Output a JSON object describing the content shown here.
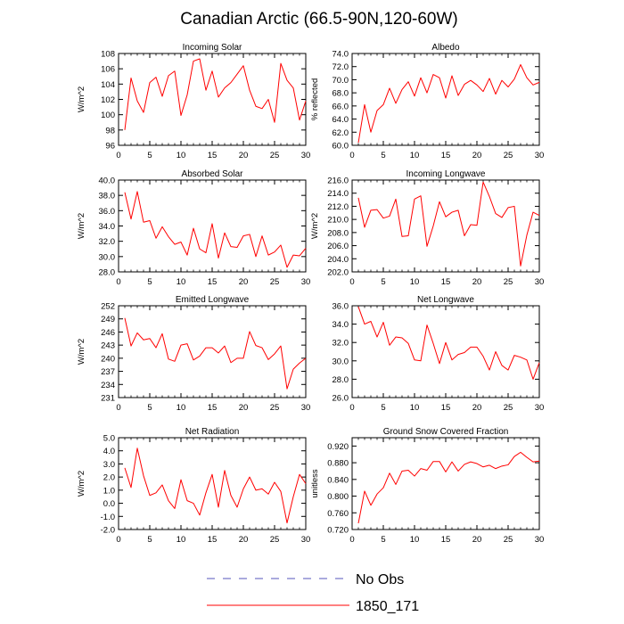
{
  "figure": {
    "title": "Canadian Arctic (66.5-90N,120-60W)"
  },
  "legend": {
    "entries": [
      {
        "label": "No Obs",
        "color": "#5555bb",
        "style": "dashed"
      },
      {
        "label": "1850_171",
        "color": "#ff0000",
        "style": "solid"
      }
    ]
  },
  "chart_data": [
    {
      "type": "line",
      "title": "Incoming Solar",
      "xlabel": "",
      "ylabel": "W/m^2",
      "xlim": [
        0,
        30
      ],
      "ylim": [
        96,
        108
      ],
      "xticks": [
        0,
        5,
        10,
        15,
        20,
        25,
        30
      ],
      "yticks": [
        96,
        98,
        100,
        102,
        104,
        106,
        108
      ],
      "ytick_labels": [
        "96",
        "98",
        "100",
        "102",
        "104",
        "106",
        "108"
      ],
      "series": [
        {
          "name": "1850_171",
          "color": "#ff0000",
          "x": [
            1,
            2,
            3,
            4,
            5,
            6,
            7,
            8,
            9,
            10,
            11,
            12,
            13,
            14,
            15,
            16,
            17,
            18,
            19,
            20,
            21,
            22,
            23,
            24,
            25,
            26,
            27,
            28,
            29,
            30
          ],
          "values": [
            98.0,
            104.8,
            101.8,
            100.3,
            104.2,
            104.9,
            102.4,
            105.1,
            105.7,
            99.9,
            102.6,
            107.0,
            107.3,
            103.2,
            105.7,
            102.3,
            103.5,
            104.2,
            105.3,
            106.4,
            103.2,
            101.1,
            100.8,
            102.0,
            99.0,
            106.7,
            104.5,
            103.5,
            99.3,
            101.8
          ]
        }
      ]
    },
    {
      "type": "line",
      "title": "Albedo",
      "xlabel": "",
      "ylabel": "% reflected",
      "xlim": [
        0,
        30
      ],
      "ylim": [
        60,
        74
      ],
      "xticks": [
        0,
        5,
        10,
        15,
        20,
        25,
        30
      ],
      "yticks": [
        60,
        62,
        64,
        66,
        68,
        70,
        72,
        74
      ],
      "ytick_labels": [
        "60.0",
        "62.0",
        "64.0",
        "66.0",
        "68.0",
        "70.0",
        "72.0",
        "74.0"
      ],
      "series": [
        {
          "name": "1850_171",
          "color": "#ff0000",
          "x": [
            1,
            2,
            3,
            4,
            5,
            6,
            7,
            8,
            9,
            10,
            11,
            12,
            13,
            14,
            15,
            16,
            17,
            18,
            19,
            20,
            21,
            22,
            23,
            24,
            25,
            26,
            27,
            28,
            29,
            30
          ],
          "values": [
            60.4,
            66.2,
            62.0,
            65.3,
            66.2,
            68.7,
            66.4,
            68.5,
            69.7,
            67.5,
            70.3,
            68.0,
            70.8,
            70.3,
            67.2,
            70.6,
            67.6,
            69.3,
            69.9,
            69.2,
            68.2,
            70.2,
            67.8,
            69.9,
            68.9,
            70.1,
            72.3,
            70.3,
            69.2,
            69.6
          ]
        }
      ]
    },
    {
      "type": "line",
      "title": "Absorbed Solar",
      "xlabel": "",
      "ylabel": "W/m^2",
      "xlim": [
        0,
        30
      ],
      "ylim": [
        28,
        40
      ],
      "xticks": [
        0,
        5,
        10,
        15,
        20,
        25,
        30
      ],
      "yticks": [
        28,
        30,
        32,
        34,
        36,
        38,
        40
      ],
      "ytick_labels": [
        "28.0",
        "30.0",
        "32.0",
        "34.0",
        "36.0",
        "38.0",
        "40.0"
      ],
      "series": [
        {
          "name": "1850_171",
          "color": "#ff0000",
          "x": [
            1,
            2,
            3,
            4,
            5,
            6,
            7,
            8,
            9,
            10,
            11,
            12,
            13,
            14,
            15,
            16,
            17,
            18,
            19,
            20,
            21,
            22,
            23,
            24,
            25,
            26,
            27,
            28,
            29,
            30
          ],
          "values": [
            38.4,
            34.9,
            38.5,
            34.5,
            34.7,
            32.4,
            33.9,
            32.6,
            31.6,
            31.9,
            30.2,
            33.7,
            31.0,
            30.5,
            34.3,
            29.8,
            33.1,
            31.3,
            31.2,
            32.7,
            32.9,
            30.0,
            32.7,
            30.2,
            30.6,
            31.5,
            28.6,
            30.2,
            30.1,
            31.1
          ]
        }
      ]
    },
    {
      "type": "line",
      "title": "Incoming Longwave",
      "xlabel": "",
      "ylabel": "W/m^2",
      "xlim": [
        0,
        30
      ],
      "ylim": [
        202,
        216
      ],
      "xticks": [
        0,
        5,
        10,
        15,
        20,
        25,
        30
      ],
      "yticks": [
        202,
        204,
        206,
        208,
        210,
        212,
        214,
        216
      ],
      "ytick_labels": [
        "202.0",
        "204.0",
        "206.0",
        "208.0",
        "210.0",
        "212.0",
        "214.0",
        "216.0"
      ],
      "series": [
        {
          "name": "1850_171",
          "color": "#ff0000",
          "x": [
            1,
            2,
            3,
            4,
            5,
            6,
            7,
            8,
            9,
            10,
            11,
            12,
            13,
            14,
            15,
            16,
            17,
            18,
            19,
            20,
            21,
            22,
            23,
            24,
            25,
            26,
            27,
            28,
            29,
            30
          ],
          "values": [
            213.3,
            208.8,
            211.4,
            211.5,
            210.2,
            210.5,
            213.1,
            207.4,
            207.5,
            213.1,
            213.6,
            205.9,
            209.0,
            212.7,
            210.4,
            211.1,
            211.4,
            207.5,
            209.2,
            209.1,
            215.7,
            213.5,
            210.9,
            210.3,
            211.8,
            212.0,
            202.9,
            207.6,
            211.1,
            210.6
          ]
        }
      ]
    },
    {
      "type": "line",
      "title": "Emitted Longwave",
      "xlabel": "",
      "ylabel": "W/m^2",
      "xlim": [
        0,
        30
      ],
      "ylim": [
        231,
        252
      ],
      "xticks": [
        0,
        5,
        10,
        15,
        20,
        25,
        30
      ],
      "yticks": [
        231,
        234,
        237,
        240,
        243,
        246,
        249,
        252
      ],
      "ytick_labels": [
        "231",
        "234",
        "237",
        "240",
        "243",
        "246",
        "249",
        "252"
      ],
      "series": [
        {
          "name": "1850_171",
          "color": "#ff0000",
          "x": [
            1,
            2,
            3,
            4,
            5,
            6,
            7,
            8,
            9,
            10,
            11,
            12,
            13,
            14,
            15,
            16,
            17,
            18,
            19,
            20,
            21,
            22,
            23,
            24,
            25,
            26,
            27,
            28,
            29,
            30
          ],
          "values": [
            249.2,
            242.8,
            245.8,
            244.2,
            244.5,
            242.4,
            245.6,
            239.8,
            239.3,
            243.0,
            243.3,
            239.6,
            240.5,
            242.4,
            242.4,
            241.2,
            242.8,
            239.0,
            240.0,
            240.0,
            246.1,
            242.9,
            242.4,
            239.7,
            241.0,
            242.8,
            233.0,
            237.5,
            238.9,
            240.0
          ]
        }
      ]
    },
    {
      "type": "line",
      "title": "Net Longwave",
      "xlabel": "",
      "ylabel": "",
      "xlim": [
        0,
        30
      ],
      "ylim": [
        26,
        36
      ],
      "xticks": [
        0,
        5,
        10,
        15,
        20,
        25,
        30
      ],
      "yticks": [
        26,
        28,
        30,
        32,
        34,
        36
      ],
      "ytick_labels": [
        "26.0",
        "28.0",
        "30.0",
        "32.0",
        "34.0",
        "36.0"
      ],
      "series": [
        {
          "name": "1850_171",
          "color": "#ff0000",
          "x": [
            1,
            2,
            3,
            4,
            5,
            6,
            7,
            8,
            9,
            10,
            11,
            12,
            13,
            14,
            15,
            16,
            17,
            18,
            19,
            20,
            21,
            22,
            23,
            24,
            25,
            26,
            27,
            28,
            29,
            30
          ],
          "values": [
            35.9,
            34.0,
            34.3,
            32.6,
            34.2,
            31.7,
            32.6,
            32.5,
            31.9,
            30.1,
            30.0,
            33.9,
            31.9,
            29.7,
            32.0,
            30.1,
            30.7,
            30.9,
            31.5,
            31.5,
            30.5,
            29.0,
            31.0,
            29.5,
            29.0,
            30.6,
            30.4,
            30.1,
            28.0,
            29.8
          ]
        }
      ]
    },
    {
      "type": "line",
      "title": "Net Radiation",
      "xlabel": "",
      "ylabel": "W/m^2",
      "xlim": [
        0,
        30
      ],
      "ylim": [
        -2,
        5
      ],
      "xticks": [
        0,
        5,
        10,
        15,
        20,
        25,
        30
      ],
      "yticks": [
        -2,
        -1,
        0,
        1,
        2,
        3,
        4,
        5
      ],
      "ytick_labels": [
        "-2.0",
        "-1.0",
        "0.0",
        "1.0",
        "2.0",
        "3.0",
        "4.0",
        "5.0"
      ],
      "series": [
        {
          "name": "1850_171",
          "color": "#ff0000",
          "x": [
            1,
            2,
            3,
            4,
            5,
            6,
            7,
            8,
            9,
            10,
            11,
            12,
            13,
            14,
            15,
            16,
            17,
            18,
            19,
            20,
            21,
            22,
            23,
            24,
            25,
            26,
            27,
            28,
            29,
            30
          ],
          "values": [
            2.7,
            1.2,
            4.2,
            2.1,
            0.6,
            0.8,
            1.4,
            0.2,
            -0.4,
            1.8,
            0.2,
            0.0,
            -0.9,
            0.8,
            2.2,
            -0.3,
            2.5,
            0.6,
            -0.3,
            1.1,
            2.0,
            1.0,
            1.1,
            0.7,
            1.6,
            0.9,
            -1.5,
            0.5,
            2.2,
            1.5
          ]
        }
      ]
    },
    {
      "type": "line",
      "title": "Ground Snow Covered Fraction",
      "xlabel": "",
      "ylabel": "unitless",
      "xlim": [
        0,
        30
      ],
      "ylim": [
        0.72,
        0.94
      ],
      "xticks": [
        0,
        5,
        10,
        15,
        20,
        25,
        30
      ],
      "yticks": [
        0.72,
        0.76,
        0.8,
        0.84,
        0.88,
        0.92
      ],
      "ytick_labels": [
        "0.720",
        "0.760",
        "0.800",
        "0.840",
        "0.880",
        "0.920"
      ],
      "series": [
        {
          "name": "1850_171",
          "color": "#ff0000",
          "x": [
            1,
            2,
            3,
            4,
            5,
            6,
            7,
            8,
            9,
            10,
            11,
            12,
            13,
            14,
            15,
            16,
            17,
            18,
            19,
            20,
            21,
            22,
            23,
            24,
            25,
            26,
            27,
            28,
            29,
            30
          ],
          "values": [
            0.735,
            0.812,
            0.778,
            0.805,
            0.82,
            0.855,
            0.828,
            0.86,
            0.862,
            0.848,
            0.866,
            0.862,
            0.883,
            0.883,
            0.858,
            0.882,
            0.86,
            0.876,
            0.882,
            0.878,
            0.87,
            0.874,
            0.866,
            0.872,
            0.875,
            0.895,
            0.905,
            0.893,
            0.882,
            0.884
          ]
        }
      ]
    }
  ]
}
